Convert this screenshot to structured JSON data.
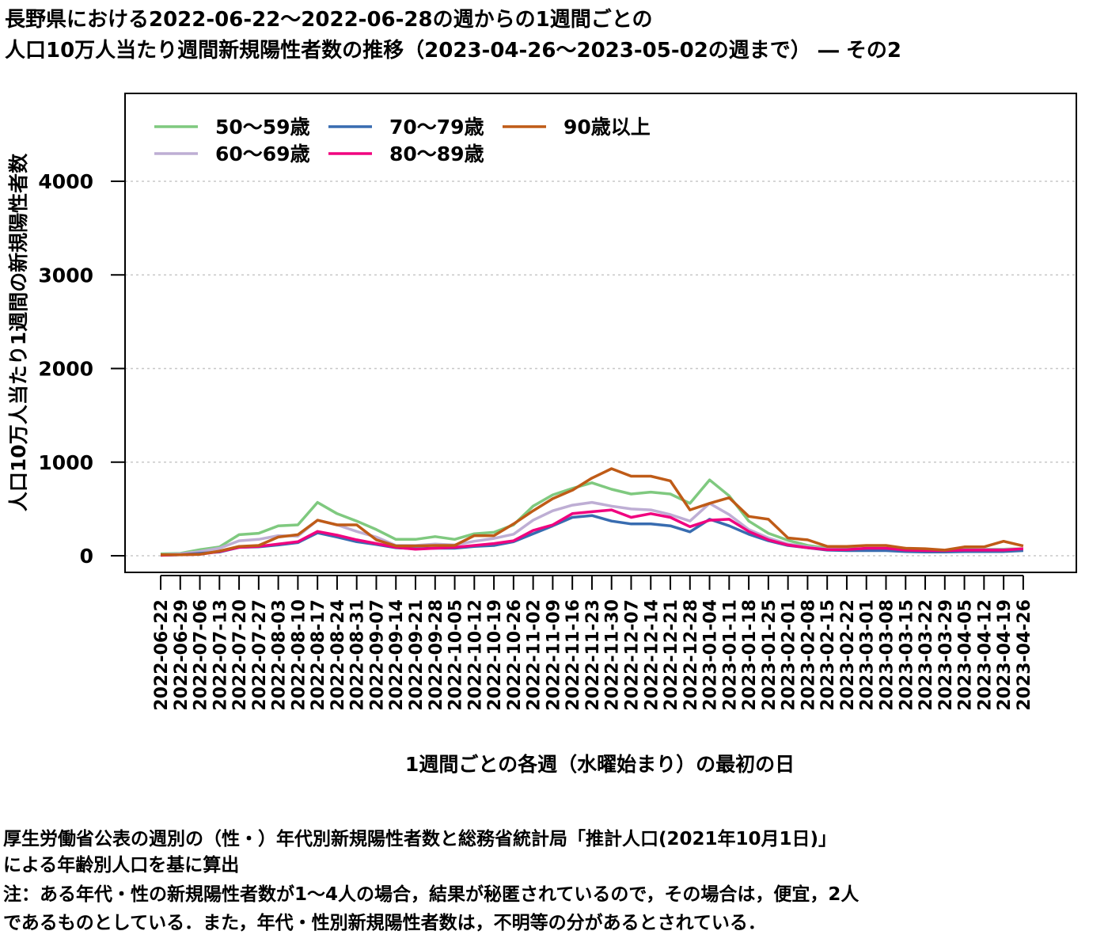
{
  "title_line1": "長野県における2022-06-22〜2022-06-28の週からの1週間ごとの",
  "title_line2": "人口10万人当たり週間新規陽性者数の推移（2023-04-26〜2023-05-02の週まで） ― その2",
  "notes": [
    "厚生労働省公表の週別の（性・）年代別新規陽性者数と総務省統計局「推計人口(2021年10月1日)」",
    "による年齢別人口を基に算出",
    "注：ある年代・性の新規陽性者数が1〜4人の場合，結果が秘匿されているので，その場合は，便宜，2人",
    "であるものとしている．また，年代・性別新規陽性者数は，不明等の分があるとされている．"
  ],
  "chart_data": {
    "type": "line",
    "xlabel": "1週間ごとの各週（水曜始まり）の最初の日",
    "ylabel": "人口10万人当たり1週間の新規陽性者数",
    "ylim": [
      0,
      4900
    ],
    "yticks": [
      0,
      1000,
      2000,
      3000,
      4000
    ],
    "grid": true,
    "legend_position": "top-left",
    "categories": [
      "2022-06-22",
      "2022-06-29",
      "2022-07-06",
      "2022-07-13",
      "2022-07-20",
      "2022-07-27",
      "2022-08-03",
      "2022-08-10",
      "2022-08-17",
      "2022-08-24",
      "2022-08-31",
      "2022-09-07",
      "2022-09-14",
      "2022-09-21",
      "2022-09-28",
      "2022-10-05",
      "2022-10-12",
      "2022-10-19",
      "2022-10-26",
      "2022-11-02",
      "2022-11-09",
      "2022-11-16",
      "2022-11-23",
      "2022-11-30",
      "2022-12-07",
      "2022-12-14",
      "2022-12-21",
      "2022-12-28",
      "2023-01-04",
      "2023-01-11",
      "2023-01-18",
      "2023-01-25",
      "2023-02-01",
      "2023-02-08",
      "2023-02-15",
      "2023-02-22",
      "2023-03-01",
      "2023-03-08",
      "2023-03-15",
      "2023-03-22",
      "2023-03-29",
      "2023-04-05",
      "2023-04-12",
      "2023-04-19",
      "2023-04-26"
    ],
    "series": [
      {
        "name": "50〜59歳",
        "color": "#7fc97f",
        "values": [
          20,
          25,
          65,
          95,
          225,
          240,
          320,
          330,
          570,
          450,
          370,
          280,
          175,
          175,
          205,
          175,
          235,
          250,
          330,
          530,
          650,
          720,
          780,
          710,
          660,
          680,
          660,
          560,
          810,
          640,
          370,
          240,
          165,
          110,
          80,
          75,
          75,
          75,
          60,
          55,
          55,
          65,
          70,
          70,
          75
        ]
      },
      {
        "name": "60〜69歳",
        "color": "#beaed4",
        "values": [
          10,
          20,
          45,
          80,
          160,
          175,
          215,
          210,
          380,
          330,
          260,
          200,
          110,
          110,
          125,
          115,
          155,
          185,
          230,
          380,
          480,
          540,
          570,
          530,
          500,
          490,
          440,
          370,
          560,
          440,
          280,
          190,
          125,
          95,
          70,
          65,
          65,
          65,
          55,
          50,
          50,
          60,
          65,
          65,
          70
        ]
      },
      {
        "name": "70〜79歳",
        "color": "#386cb0",
        "values": [
          5,
          10,
          25,
          40,
          90,
          95,
          115,
          140,
          245,
          200,
          150,
          120,
          85,
          75,
          80,
          80,
          100,
          110,
          150,
          235,
          320,
          410,
          430,
          370,
          340,
          340,
          320,
          255,
          390,
          320,
          230,
          160,
          110,
          85,
          60,
          55,
          55,
          55,
          45,
          40,
          40,
          45,
          45,
          45,
          55
        ]
      },
      {
        "name": "80〜89歳",
        "color": "#f0027f",
        "values": [
          5,
          10,
          15,
          45,
          90,
          100,
          125,
          150,
          260,
          220,
          170,
          130,
          90,
          70,
          80,
          90,
          110,
          130,
          160,
          270,
          330,
          450,
          470,
          490,
          410,
          450,
          410,
          310,
          380,
          390,
          260,
          170,
          115,
          85,
          65,
          65,
          80,
          80,
          60,
          55,
          55,
          60,
          60,
          60,
          75
        ]
      },
      {
        "name": "90歳以上",
        "color": "#bf5b17",
        "values": [
          10,
          10,
          15,
          50,
          100,
          110,
          200,
          225,
          380,
          330,
          330,
          170,
          105,
          105,
          110,
          110,
          215,
          215,
          340,
          480,
          610,
          700,
          830,
          930,
          850,
          850,
          800,
          490,
          560,
          620,
          420,
          390,
          190,
          170,
          100,
          100,
          110,
          110,
          80,
          75,
          60,
          95,
          95,
          155,
          105
        ]
      }
    ]
  }
}
